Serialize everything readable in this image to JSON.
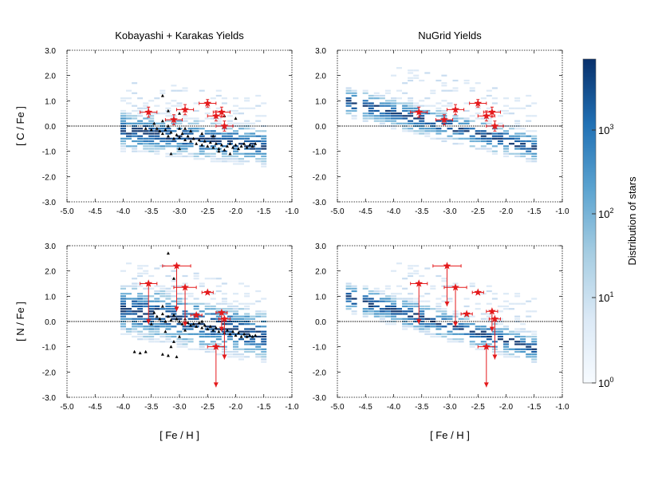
{
  "colors": {
    "heat_low": "#eef4fb",
    "heat_high": "#08306b",
    "observed": "#e41a1c",
    "model_points": "#000000",
    "zero_line": "#000000"
  },
  "figure": {
    "xlabel": "[ Fe / H ]",
    "colorbar": {
      "label": "Distribution of stars",
      "scale": "log",
      "ticks": [
        "10",
        "10",
        "10",
        "10"
      ],
      "tick_exponents": [
        "0",
        "1",
        "2",
        "3"
      ],
      "range": [
        1,
        6000
      ]
    }
  },
  "chart_data": [
    {
      "type": "heatmap",
      "title": "Kobayashi + Karakas Yields",
      "ylabel": "[ C / Fe ]",
      "xlim": [
        -5.0,
        -1.0
      ],
      "ylim": [
        -3.0,
        3.0
      ],
      "xticks": [
        "-5.0",
        "-4.5",
        "-4.0",
        "-3.5",
        "-3.0",
        "-2.5",
        "-2.0",
        "-1.5",
        "-1.0"
      ],
      "yticks": [
        "3.0",
        "2.0",
        "1.0",
        "0.0",
        "-1.0",
        "-2.0",
        "-3.0"
      ],
      "observed_stars": [
        {
          "feh": -3.55,
          "val": 0.55,
          "xerr": 0.15,
          "yerr": 0.2,
          "upper_limit": false
        },
        {
          "feh": -3.1,
          "val": 0.25,
          "xerr": 0.15,
          "yerr": 0.2,
          "upper_limit": false
        },
        {
          "feh": -2.9,
          "val": 0.65,
          "xerr": 0.15,
          "yerr": 0.2,
          "upper_limit": false
        },
        {
          "feh": -2.5,
          "val": 0.9,
          "xerr": 0.15,
          "yerr": 0.15,
          "upper_limit": false
        },
        {
          "feh": -2.35,
          "val": 0.4,
          "xerr": 0.15,
          "yerr": 0.2,
          "upper_limit": false
        },
        {
          "feh": -2.25,
          "val": 0.55,
          "xerr": 0.15,
          "yerr": 0.2,
          "upper_limit": false
        },
        {
          "feh": -2.2,
          "val": 0.0,
          "xerr": 0.15,
          "yerr": 0.2,
          "upper_limit": false
        }
      ],
      "model_points": [
        [
          -3.4,
          -0.1
        ],
        [
          -3.35,
          -0.2
        ],
        [
          -3.3,
          -0.3
        ],
        [
          -3.25,
          -0.15
        ],
        [
          -3.2,
          -0.4
        ],
        [
          -3.15,
          -0.25
        ],
        [
          -3.1,
          -0.5
        ],
        [
          -3.05,
          -0.35
        ],
        [
          -3.0,
          -0.45
        ],
        [
          -2.95,
          -0.3
        ],
        [
          -2.9,
          -0.55
        ],
        [
          -2.85,
          -0.4
        ],
        [
          -2.8,
          -0.6
        ],
        [
          -2.75,
          -0.5
        ],
        [
          -2.7,
          -0.7
        ],
        [
          -2.65,
          -0.55
        ],
        [
          -2.6,
          -0.75
        ],
        [
          -2.55,
          -0.6
        ],
        [
          -2.5,
          -0.8
        ],
        [
          -2.45,
          -0.65
        ],
        [
          -2.4,
          -0.85
        ],
        [
          -2.35,
          -0.7
        ],
        [
          -2.3,
          -0.9
        ],
        [
          -2.25,
          -0.75
        ],
        [
          -2.2,
          -0.95
        ],
        [
          -2.15,
          -0.8
        ],
        [
          -2.1,
          -0.7
        ],
        [
          -2.05,
          -0.85
        ],
        [
          -2.0,
          -0.75
        ],
        [
          -1.95,
          -0.9
        ],
        [
          -1.9,
          -0.8
        ],
        [
          -1.85,
          -0.7
        ],
        [
          -1.8,
          -0.85
        ],
        [
          -1.75,
          -0.75
        ],
        [
          -1.7,
          -0.8
        ],
        [
          -1.65,
          -0.7
        ],
        [
          -3.45,
          0.1
        ],
        [
          -3.3,
          0.2
        ],
        [
          -3.2,
          0.0
        ],
        [
          -3.0,
          -0.1
        ],
        [
          -2.8,
          -0.2
        ],
        [
          -2.6,
          -0.3
        ],
        [
          -3.2,
          0.6
        ],
        [
          -3.0,
          0.5
        ],
        [
          -3.3,
          1.2
        ],
        [
          -2.2,
          0.4
        ],
        [
          -2.0,
          0.3
        ],
        [
          -3.15,
          -1.1
        ],
        [
          -3.0,
          -0.9
        ],
        [
          -2.1,
          -1.1
        ],
        [
          -2.3,
          -1.0
        ],
        [
          -3.6,
          -0.1
        ],
        [
          -3.5,
          -0.15
        ],
        [
          -2.9,
          -0.1
        ],
        [
          -2.4,
          -0.4
        ]
      ]
    },
    {
      "type": "heatmap",
      "title": "NuGrid Yields",
      "ylabel": "",
      "xlim": [
        -5.0,
        -1.0
      ],
      "ylim": [
        -3.0,
        3.0
      ],
      "xticks": [
        "-5.0",
        "-4.5",
        "-4.0",
        "-3.5",
        "-3.0",
        "-2.5",
        "-2.0",
        "-1.5",
        "-1.0"
      ],
      "yticks": [
        "3.0",
        "2.0",
        "1.0",
        "0.0",
        "-1.0",
        "-2.0",
        "-3.0"
      ],
      "observed_stars": [
        {
          "feh": -3.55,
          "val": 0.55,
          "xerr": 0.15,
          "yerr": 0.2,
          "upper_limit": false
        },
        {
          "feh": -3.1,
          "val": 0.25,
          "xerr": 0.15,
          "yerr": 0.2,
          "upper_limit": false
        },
        {
          "feh": -2.9,
          "val": 0.65,
          "xerr": 0.15,
          "yerr": 0.2,
          "upper_limit": false
        },
        {
          "feh": -2.5,
          "val": 0.9,
          "xerr": 0.15,
          "yerr": 0.15,
          "upper_limit": false
        },
        {
          "feh": -2.35,
          "val": 0.4,
          "xerr": 0.15,
          "yerr": 0.2,
          "upper_limit": false
        },
        {
          "feh": -2.25,
          "val": 0.55,
          "xerr": 0.15,
          "yerr": 0.2,
          "upper_limit": false
        },
        {
          "feh": -2.2,
          "val": 0.0,
          "xerr": 0.15,
          "yerr": 0.2,
          "upper_limit": false
        }
      ],
      "model_points": []
    },
    {
      "type": "heatmap",
      "title": "",
      "ylabel": "[ N / Fe ]",
      "xlim": [
        -5.0,
        -1.0
      ],
      "ylim": [
        -3.0,
        3.0
      ],
      "xticks": [
        "-5.0",
        "-4.5",
        "-4.0",
        "-3.5",
        "-3.0",
        "-2.5",
        "-2.0",
        "-1.5",
        "-1.0"
      ],
      "yticks": [
        "3.0",
        "2.0",
        "1.0",
        "0.0",
        "-1.0",
        "-2.0",
        "-3.0"
      ],
      "observed_stars": [
        {
          "feh": -3.55,
          "val": 1.5,
          "xerr": 0.15,
          "yerr": 0.0,
          "upper_limit": true,
          "limit_to": -0.1
        },
        {
          "feh": -3.05,
          "val": 2.2,
          "xerr": 0.25,
          "yerr": 0.0,
          "upper_limit": true,
          "limit_to": 0.4
        },
        {
          "feh": -2.9,
          "val": 1.35,
          "xerr": 0.2,
          "yerr": 0.0,
          "upper_limit": true,
          "limit_to": -0.2
        },
        {
          "feh": -2.7,
          "val": 0.25,
          "xerr": 0.1,
          "yerr": 0.0,
          "upper_limit": false
        },
        {
          "feh": -2.5,
          "val": 1.15,
          "xerr": 0.1,
          "yerr": 0.0,
          "upper_limit": false
        },
        {
          "feh": -2.35,
          "val": -1.0,
          "xerr": 0.15,
          "yerr": 0.0,
          "upper_limit": true,
          "limit_to": -2.6
        },
        {
          "feh": -2.25,
          "val": 0.35,
          "xerr": 0.1,
          "yerr": 0.0,
          "upper_limit": true,
          "limit_to": -0.4
        },
        {
          "feh": -2.2,
          "val": 0.1,
          "xerr": 0.1,
          "yerr": 0.0,
          "upper_limit": true,
          "limit_to": -1.5
        }
      ],
      "model_points": [
        [
          -3.4,
          0.2
        ],
        [
          -3.35,
          0.1
        ],
        [
          -3.3,
          0.3
        ],
        [
          -3.25,
          0.0
        ],
        [
          -3.2,
          0.2
        ],
        [
          -3.15,
          0.05
        ],
        [
          -3.1,
          0.25
        ],
        [
          -3.05,
          0.1
        ],
        [
          -3.0,
          0.0
        ],
        [
          -2.95,
          -0.1
        ],
        [
          -2.9,
          0.1
        ],
        [
          -2.85,
          -0.05
        ],
        [
          -2.8,
          -0.15
        ],
        [
          -2.75,
          -0.1
        ],
        [
          -2.7,
          -0.2
        ],
        [
          -2.65,
          -0.05
        ],
        [
          -2.6,
          -0.25
        ],
        [
          -2.55,
          -0.15
        ],
        [
          -2.5,
          -0.3
        ],
        [
          -2.45,
          -0.2
        ],
        [
          -2.4,
          -0.35
        ],
        [
          -2.35,
          -0.25
        ],
        [
          -2.3,
          -0.4
        ],
        [
          -2.25,
          -0.3
        ],
        [
          -2.2,
          -0.45
        ],
        [
          -2.15,
          -0.35
        ],
        [
          -2.1,
          -0.5
        ],
        [
          -2.05,
          -0.4
        ],
        [
          -2.0,
          -0.55
        ],
        [
          -1.95,
          -0.45
        ],
        [
          -1.9,
          -0.6
        ],
        [
          -1.85,
          -0.5
        ],
        [
          -1.8,
          -0.6
        ],
        [
          -1.75,
          -0.55
        ],
        [
          -1.7,
          -0.6
        ],
        [
          -1.65,
          -0.55
        ],
        [
          -3.8,
          -1.2
        ],
        [
          -3.7,
          -1.25
        ],
        [
          -3.6,
          -1.2
        ],
        [
          -3.3,
          -1.3
        ],
        [
          -3.2,
          -1.35
        ],
        [
          -3.15,
          -1.0
        ],
        [
          -3.1,
          -0.8
        ],
        [
          -3.0,
          -0.6
        ],
        [
          -3.05,
          -1.4
        ],
        [
          -3.25,
          -0.4
        ],
        [
          -3.2,
          2.7
        ],
        [
          -3.1,
          1.7
        ],
        [
          -3.3,
          0.6
        ],
        [
          -2.6,
          0.0
        ],
        [
          -2.9,
          -0.35
        ],
        [
          -3.45,
          0.35
        ],
        [
          -3.5,
          -0.1
        ]
      ]
    },
    {
      "type": "heatmap",
      "title": "",
      "ylabel": "",
      "xlim": [
        -5.0,
        -1.0
      ],
      "ylim": [
        -3.0,
        3.0
      ],
      "xticks": [
        "-5.0",
        "-4.5",
        "-4.0",
        "-3.5",
        "-3.0",
        "-2.5",
        "-2.0",
        "-1.5",
        "-1.0"
      ],
      "yticks": [
        "3.0",
        "2.0",
        "1.0",
        "0.0",
        "-1.0",
        "-2.0",
        "-3.0"
      ],
      "observed_stars": [
        {
          "feh": -3.55,
          "val": 1.5,
          "xerr": 0.15,
          "yerr": 0.0,
          "upper_limit": true,
          "limit_to": -0.1
        },
        {
          "feh": -3.05,
          "val": 2.2,
          "xerr": 0.25,
          "yerr": 0.0,
          "upper_limit": true,
          "limit_to": 0.6
        },
        {
          "feh": -2.9,
          "val": 1.35,
          "xerr": 0.2,
          "yerr": 0.0,
          "upper_limit": true,
          "limit_to": -0.2
        },
        {
          "feh": -2.7,
          "val": 0.3,
          "xerr": 0.1,
          "yerr": 0.0,
          "upper_limit": false
        },
        {
          "feh": -2.5,
          "val": 1.15,
          "xerr": 0.1,
          "yerr": 0.0,
          "upper_limit": false
        },
        {
          "feh": -2.35,
          "val": -1.0,
          "xerr": 0.15,
          "yerr": 0.0,
          "upper_limit": true,
          "limit_to": -2.6
        },
        {
          "feh": -2.25,
          "val": 0.4,
          "xerr": 0.1,
          "yerr": 0.0,
          "upper_limit": true,
          "limit_to": -0.4
        },
        {
          "feh": -2.2,
          "val": 0.1,
          "xerr": 0.1,
          "yerr": 0.0,
          "upper_limit": true,
          "limit_to": -1.5
        }
      ],
      "model_points": []
    }
  ]
}
